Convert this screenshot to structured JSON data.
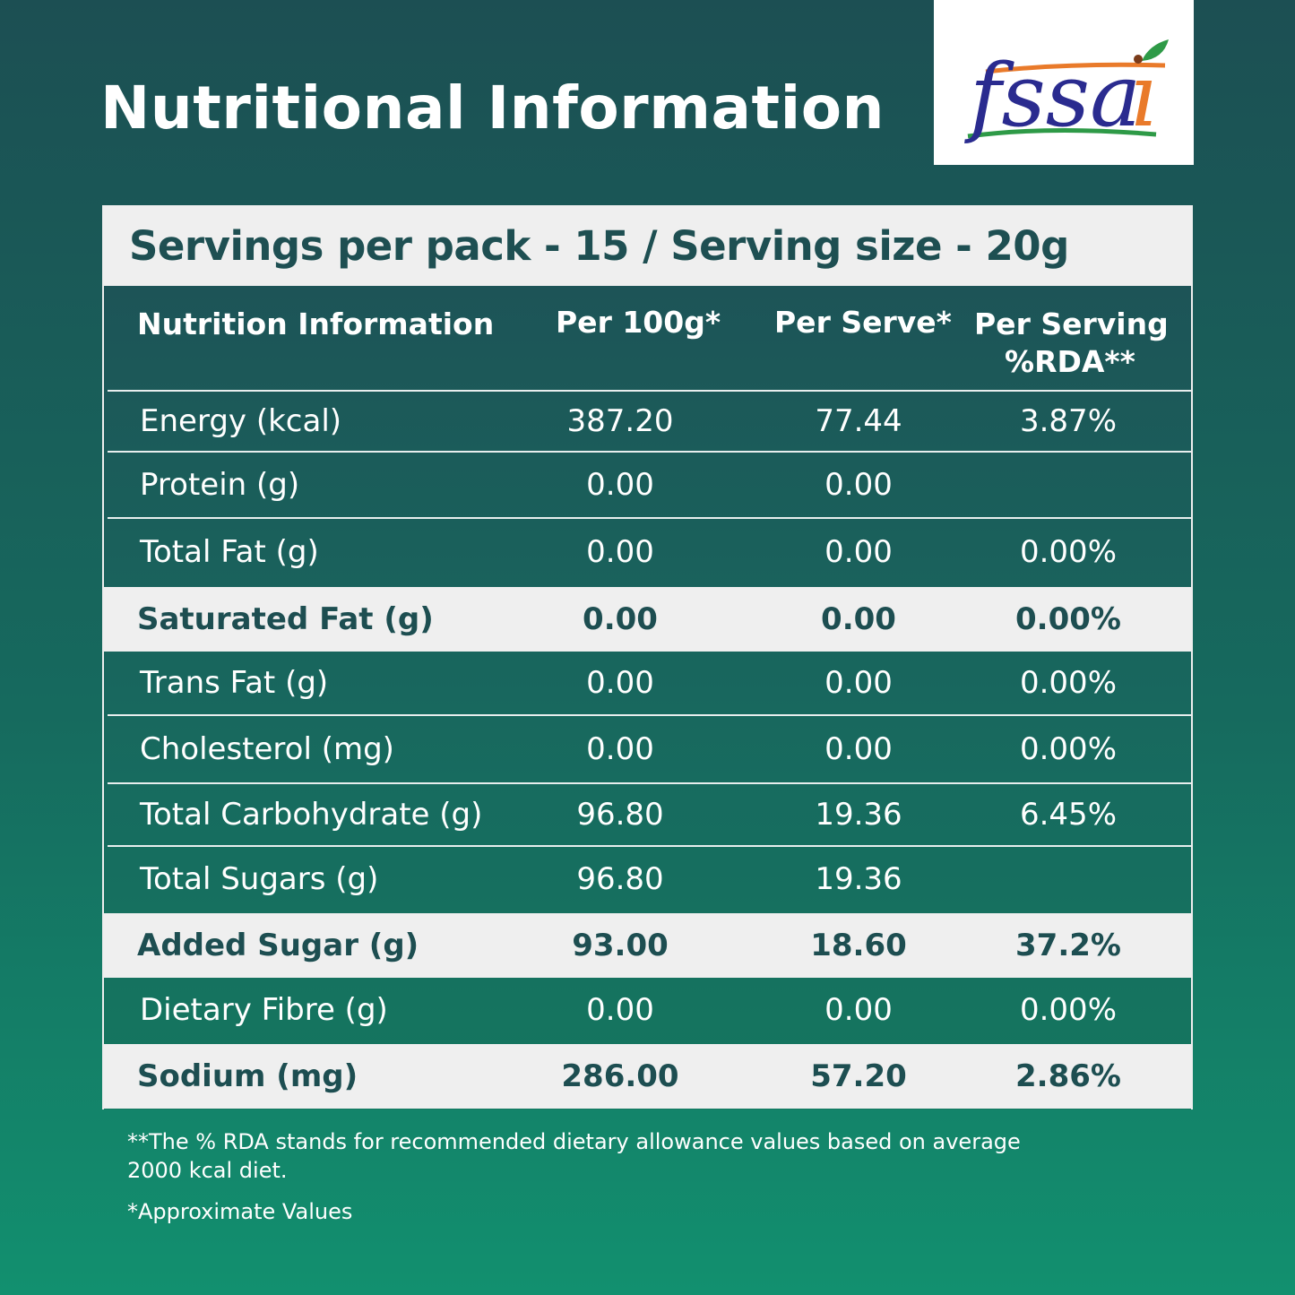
{
  "title": "Nutritional Information",
  "logo": {
    "text": "fssai",
    "colors": {
      "text": "#2a2b8f",
      "orange": "#e97a2a",
      "green": "#2e9a47"
    }
  },
  "serving_line": "Servings per pack - 15 / Serving size - 20g",
  "table": {
    "headers": [
      "Nutrition Information",
      "Per 100g*",
      "Per Serve*",
      "Per Serving",
      "%RDA**"
    ],
    "rows": [
      {
        "name": "Energy (kcal)",
        "per100": "387.20",
        "serve": "77.44",
        "rda": "3.87%",
        "highlight": false
      },
      {
        "name": "Protein (g)",
        "per100": "0.00",
        "serve": "0.00",
        "rda": "",
        "highlight": false
      },
      {
        "name": "Total Fat (g)",
        "per100": "0.00",
        "serve": "0.00",
        "rda": "0.00%",
        "highlight": false
      },
      {
        "name": "Saturated Fat (g)",
        "per100": "0.00",
        "serve": "0.00",
        "rda": "0.00%",
        "highlight": true
      },
      {
        "name": "Trans Fat (g)",
        "per100": "0.00",
        "serve": "0.00",
        "rda": "0.00%",
        "highlight": false
      },
      {
        "name": "Cholesterol (mg)",
        "per100": "0.00",
        "serve": "0.00",
        "rda": "0.00%",
        "highlight": false
      },
      {
        "name": "Total Carbohydrate (g)",
        "per100": "96.80",
        "serve": "19.36",
        "rda": "6.45%",
        "highlight": false
      },
      {
        "name": "Total Sugars (g)",
        "per100": "96.80",
        "serve": "19.36",
        "rda": "",
        "highlight": false
      },
      {
        "name": "Added  Sugar (g)",
        "per100": "93.00",
        "serve": "18.60",
        "rda": "37.2%",
        "highlight": true
      },
      {
        "name": "Dietary Fibre (g)",
        "per100": "0.00",
        "serve": "0.00",
        "rda": "0.00%",
        "highlight": false
      },
      {
        "name": "Sodium (mg)",
        "per100": "286.00",
        "serve": "57.20",
        "rda": "2.86%",
        "highlight": true
      }
    ]
  },
  "footnotes": {
    "rda_line1": "**The % RDA stands for recommended dietary allowance values based on average",
    "rda_line2": "2000 kcal diet.",
    "approx": "*Approximate Values"
  },
  "colors": {
    "dark_teal": "#1c4f53",
    "green": "#12906f",
    "light_row": "#efefef",
    "text_dark": "#1d4e51"
  }
}
